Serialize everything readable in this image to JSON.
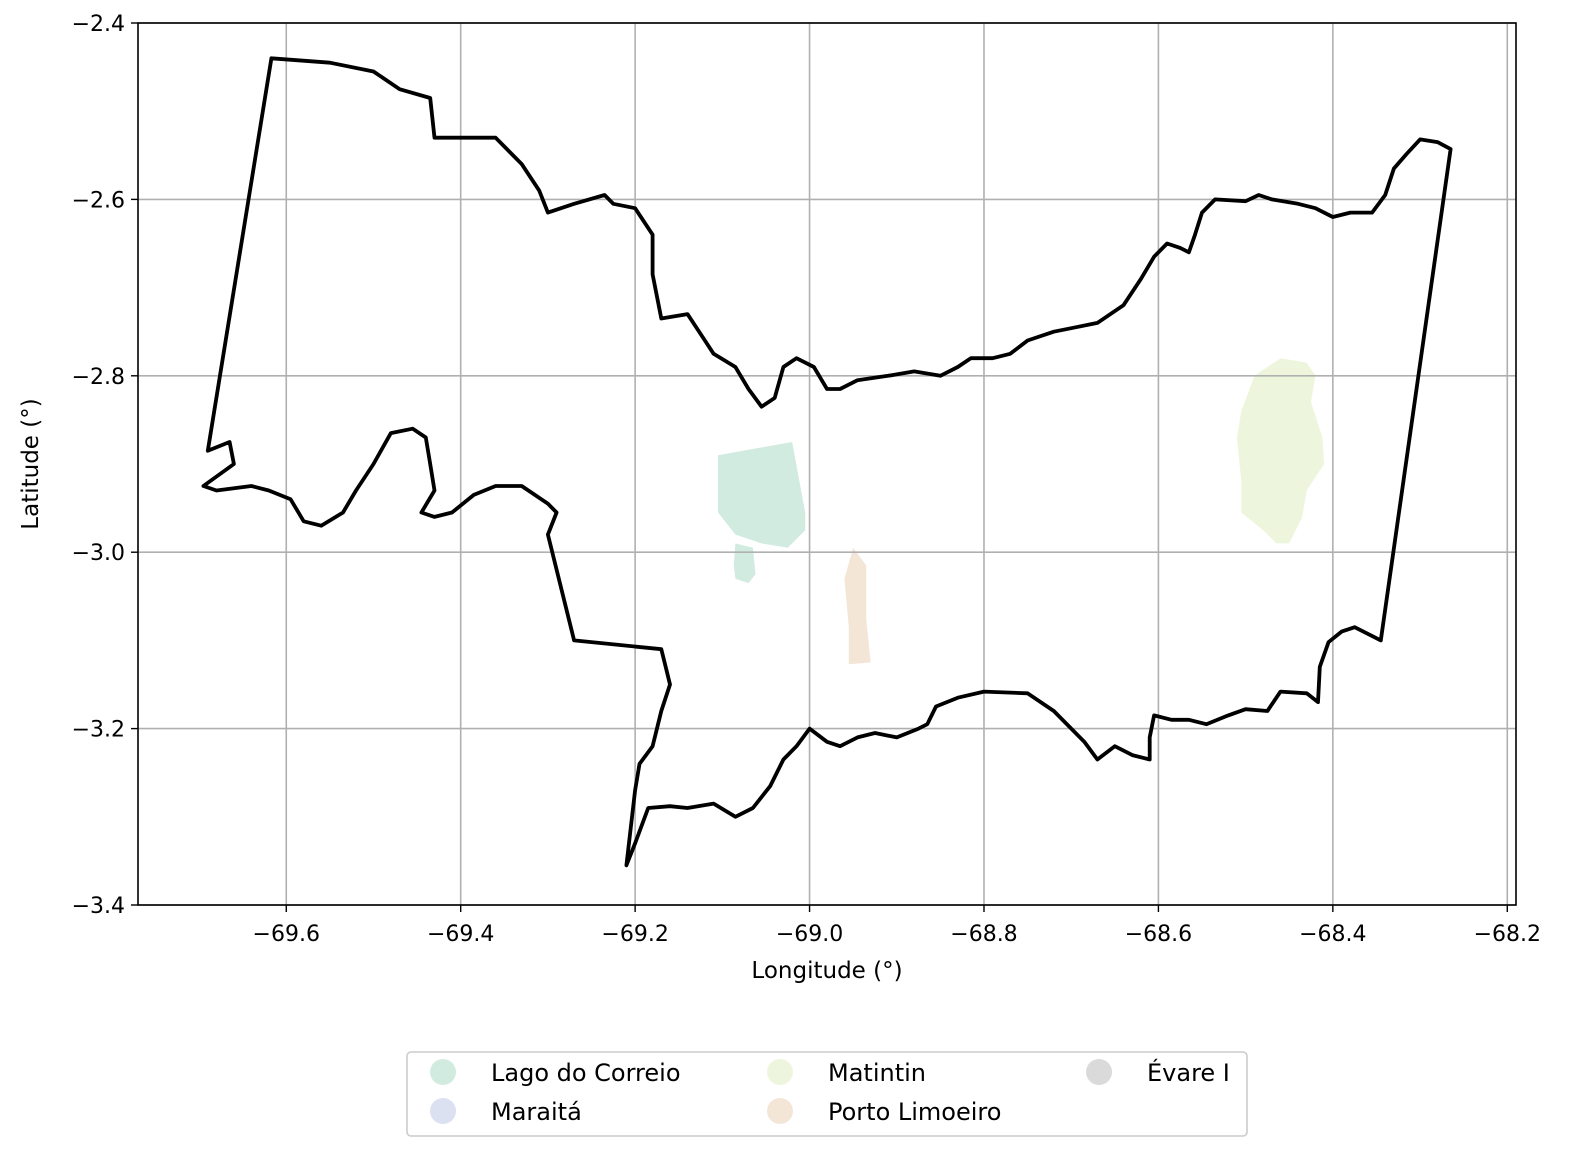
{
  "map": {
    "xlabel": "Longitude (°)",
    "ylabel": "Latitude (°)",
    "xlim": [
      -69.77,
      -68.19
    ],
    "ylim": [
      -3.4,
      -2.4
    ],
    "x_ticks": [
      -69.6,
      -69.4,
      -69.2,
      -69.0,
      -68.8,
      -68.6,
      -68.4,
      -68.2
    ],
    "x_tick_labels": [
      "−69.6",
      "−69.4",
      "−69.2",
      "−69.0",
      "−68.8",
      "−68.6",
      "−68.4",
      "−68.2"
    ],
    "y_ticks": [
      -2.4,
      -2.6,
      -2.8,
      -3.0,
      -3.2,
      -3.4
    ],
    "y_tick_labels": [
      "−2.4",
      "−2.6",
      "−2.8",
      "−3.0",
      "−3.2",
      "−3.4"
    ],
    "grid": true,
    "boundary_color": "#000000",
    "boundary": [
      [
        -69.617,
        -2.44
      ],
      [
        -69.55,
        -2.445
      ],
      [
        -69.5,
        -2.455
      ],
      [
        -69.47,
        -2.475
      ],
      [
        -69.435,
        -2.485
      ],
      [
        -69.43,
        -2.53
      ],
      [
        -69.39,
        -2.53
      ],
      [
        -69.36,
        -2.53
      ],
      [
        -69.33,
        -2.56
      ],
      [
        -69.31,
        -2.59
      ],
      [
        -69.3,
        -2.615
      ],
      [
        -69.27,
        -2.605
      ],
      [
        -69.235,
        -2.595
      ],
      [
        -69.225,
        -2.605
      ],
      [
        -69.2,
        -2.61
      ],
      [
        -69.18,
        -2.64
      ],
      [
        -69.18,
        -2.685
      ],
      [
        -69.17,
        -2.735
      ],
      [
        -69.14,
        -2.73
      ],
      [
        -69.12,
        -2.76
      ],
      [
        -69.11,
        -2.775
      ],
      [
        -69.085,
        -2.79
      ],
      [
        -69.07,
        -2.815
      ],
      [
        -69.055,
        -2.835
      ],
      [
        -69.04,
        -2.825
      ],
      [
        -69.03,
        -2.79
      ],
      [
        -69.015,
        -2.78
      ],
      [
        -68.995,
        -2.79
      ],
      [
        -68.98,
        -2.815
      ],
      [
        -68.965,
        -2.815
      ],
      [
        -68.945,
        -2.805
      ],
      [
        -68.91,
        -2.8
      ],
      [
        -68.88,
        -2.795
      ],
      [
        -68.85,
        -2.8
      ],
      [
        -68.83,
        -2.79
      ],
      [
        -68.815,
        -2.78
      ],
      [
        -68.79,
        -2.78
      ],
      [
        -68.77,
        -2.775
      ],
      [
        -68.75,
        -2.76
      ],
      [
        -68.72,
        -2.75
      ],
      [
        -68.695,
        -2.745
      ],
      [
        -68.67,
        -2.74
      ],
      [
        -68.64,
        -2.72
      ],
      [
        -68.62,
        -2.69
      ],
      [
        -68.605,
        -2.665
      ],
      [
        -68.59,
        -2.65
      ],
      [
        -68.575,
        -2.655
      ],
      [
        -68.565,
        -2.66
      ],
      [
        -68.558,
        -2.64
      ],
      [
        -68.55,
        -2.615
      ],
      [
        -68.535,
        -2.6
      ],
      [
        -68.5,
        -2.602
      ],
      [
        -68.485,
        -2.595
      ],
      [
        -68.47,
        -2.6
      ],
      [
        -68.44,
        -2.605
      ],
      [
        -68.42,
        -2.61
      ],
      [
        -68.4,
        -2.62
      ],
      [
        -68.38,
        -2.615
      ],
      [
        -68.355,
        -2.615
      ],
      [
        -68.34,
        -2.595
      ],
      [
        -68.33,
        -2.565
      ],
      [
        -68.315,
        -2.548
      ],
      [
        -68.3,
        -2.532
      ],
      [
        -68.28,
        -2.535
      ],
      [
        -68.265,
        -2.543
      ],
      [
        -68.345,
        -3.1
      ],
      [
        -68.375,
        -3.085
      ],
      [
        -68.39,
        -3.09
      ],
      [
        -68.405,
        -3.102
      ],
      [
        -68.415,
        -3.13
      ],
      [
        -68.417,
        -3.17
      ],
      [
        -68.43,
        -3.16
      ],
      [
        -68.46,
        -3.158
      ],
      [
        -68.475,
        -3.18
      ],
      [
        -68.5,
        -3.178
      ],
      [
        -68.52,
        -3.185
      ],
      [
        -68.545,
        -3.195
      ],
      [
        -68.565,
        -3.19
      ],
      [
        -68.585,
        -3.19
      ],
      [
        -68.605,
        -3.185
      ],
      [
        -68.61,
        -3.21
      ],
      [
        -68.61,
        -3.235
      ],
      [
        -68.63,
        -3.23
      ],
      [
        -68.65,
        -3.22
      ],
      [
        -68.67,
        -3.235
      ],
      [
        -68.685,
        -3.215
      ],
      [
        -68.72,
        -3.18
      ],
      [
        -68.75,
        -3.16
      ],
      [
        -68.8,
        -3.158
      ],
      [
        -68.83,
        -3.165
      ],
      [
        -68.855,
        -3.175
      ],
      [
        -68.865,
        -3.195
      ],
      [
        -68.875,
        -3.2
      ],
      [
        -68.9,
        -3.21
      ],
      [
        -68.925,
        -3.205
      ],
      [
        -68.945,
        -3.21
      ],
      [
        -68.965,
        -3.22
      ],
      [
        -68.98,
        -3.215
      ],
      [
        -69.0,
        -3.2
      ],
      [
        -69.015,
        -3.22
      ],
      [
        -69.03,
        -3.235
      ],
      [
        -69.045,
        -3.265
      ],
      [
        -69.065,
        -3.29
      ],
      [
        -69.085,
        -3.3
      ],
      [
        -69.11,
        -3.285
      ],
      [
        -69.14,
        -3.29
      ],
      [
        -69.16,
        -3.288
      ],
      [
        -69.185,
        -3.29
      ],
      [
        -69.2,
        -3.33
      ],
      [
        -69.21,
        -3.355
      ],
      [
        -69.2,
        -3.27
      ],
      [
        -69.195,
        -3.24
      ],
      [
        -69.18,
        -3.22
      ],
      [
        -69.17,
        -3.18
      ],
      [
        -69.16,
        -3.15
      ],
      [
        -69.165,
        -3.13
      ],
      [
        -69.17,
        -3.11
      ],
      [
        -69.27,
        -3.1
      ],
      [
        -69.3,
        -2.98
      ],
      [
        -69.29,
        -2.955
      ],
      [
        -69.3,
        -2.945
      ],
      [
        -69.33,
        -2.925
      ],
      [
        -69.36,
        -2.925
      ],
      [
        -69.385,
        -2.935
      ],
      [
        -69.41,
        -2.955
      ],
      [
        -69.43,
        -2.96
      ],
      [
        -69.445,
        -2.955
      ],
      [
        -69.43,
        -2.93
      ],
      [
        -69.435,
        -2.9
      ],
      [
        -69.44,
        -2.87
      ],
      [
        -69.455,
        -2.86
      ],
      [
        -69.48,
        -2.865
      ],
      [
        -69.5,
        -2.9
      ],
      [
        -69.52,
        -2.93
      ],
      [
        -69.535,
        -2.955
      ],
      [
        -69.56,
        -2.97
      ],
      [
        -69.58,
        -2.965
      ],
      [
        -69.595,
        -2.94
      ],
      [
        -69.62,
        -2.93
      ],
      [
        -69.64,
        -2.925
      ],
      [
        -69.68,
        -2.93
      ],
      [
        -69.695,
        -2.925
      ],
      [
        -69.66,
        -2.9
      ],
      [
        -69.665,
        -2.875
      ],
      [
        -69.69,
        -2.885
      ],
      [
        -69.617,
        -2.44
      ]
    ],
    "areas": [
      {
        "name": "Lago do Correio",
        "color": "#d2ebe0",
        "polygons": [
          [
            [
              -69.105,
              -2.89
            ],
            [
              -69.02,
              -2.875
            ],
            [
              -69.005,
              -2.955
            ],
            [
              -69.005,
              -2.975
            ],
            [
              -69.025,
              -2.995
            ],
            [
              -69.055,
              -2.99
            ],
            [
              -69.085,
              -2.98
            ],
            [
              -69.105,
              -2.955
            ]
          ],
          [
            [
              -69.085,
              -2.99
            ],
            [
              -69.065,
              -2.995
            ],
            [
              -69.062,
              -3.025
            ],
            [
              -69.07,
              -3.035
            ],
            [
              -69.085,
              -3.03
            ],
            [
              -69.087,
              -3.015
            ]
          ]
        ]
      },
      {
        "name": "Maraitá",
        "color": "#dbe1f0",
        "polygons": []
      },
      {
        "name": "Matintin",
        "color": "#edf6dc",
        "polygons": [
          [
            [
              -68.49,
              -2.8
            ],
            [
              -68.46,
              -2.78
            ],
            [
              -68.43,
              -2.785
            ],
            [
              -68.42,
              -2.8
            ],
            [
              -68.425,
              -2.83
            ],
            [
              -68.412,
              -2.87
            ],
            [
              -68.41,
              -2.9
            ],
            [
              -68.43,
              -2.93
            ],
            [
              -68.435,
              -2.96
            ],
            [
              -68.45,
              -2.99
            ],
            [
              -68.465,
              -2.99
            ],
            [
              -68.48,
              -2.975
            ],
            [
              -68.505,
              -2.955
            ],
            [
              -68.505,
              -2.92
            ],
            [
              -68.51,
              -2.87
            ],
            [
              -68.505,
              -2.84
            ]
          ]
        ]
      },
      {
        "name": "Porto Limoeiro",
        "color": "#f3e6d6",
        "polygons": [
          [
            [
              -68.95,
              -2.995
            ],
            [
              -68.935,
              -3.015
            ],
            [
              -68.935,
              -3.075
            ],
            [
              -68.93,
              -3.125
            ],
            [
              -68.955,
              -3.127
            ],
            [
              -68.955,
              -3.085
            ],
            [
              -68.96,
              -3.03
            ]
          ]
        ]
      },
      {
        "name": "Évare I",
        "color": "#dadadb",
        "polygons": []
      }
    ],
    "legend": {
      "position": "bottom-center",
      "columns": 3,
      "marker_color_key": "areas"
    }
  }
}
